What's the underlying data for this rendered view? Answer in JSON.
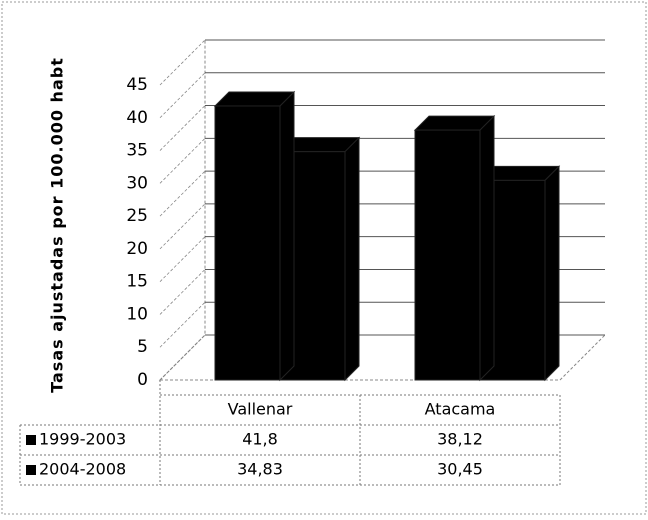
{
  "chart_data": {
    "type": "bar3d",
    "ylabel": "Tasas ajustadas  por 100.000 habt",
    "categories": [
      "Vallenar",
      "Atacama"
    ],
    "series": [
      {
        "name": "1999-2003",
        "color": "#000000",
        "values": [
          41.8,
          38.12
        ],
        "value_labels": [
          "41,8",
          "38,12"
        ]
      },
      {
        "name": "2004-2008",
        "color": "#000000",
        "values": [
          34.83,
          30.45
        ],
        "value_labels": [
          "34,83",
          "30,45"
        ]
      }
    ],
    "ylim": [
      0,
      45
    ],
    "yticks": [
      0,
      5,
      10,
      15,
      20,
      25,
      30,
      35,
      40,
      45
    ],
    "grid": true
  }
}
